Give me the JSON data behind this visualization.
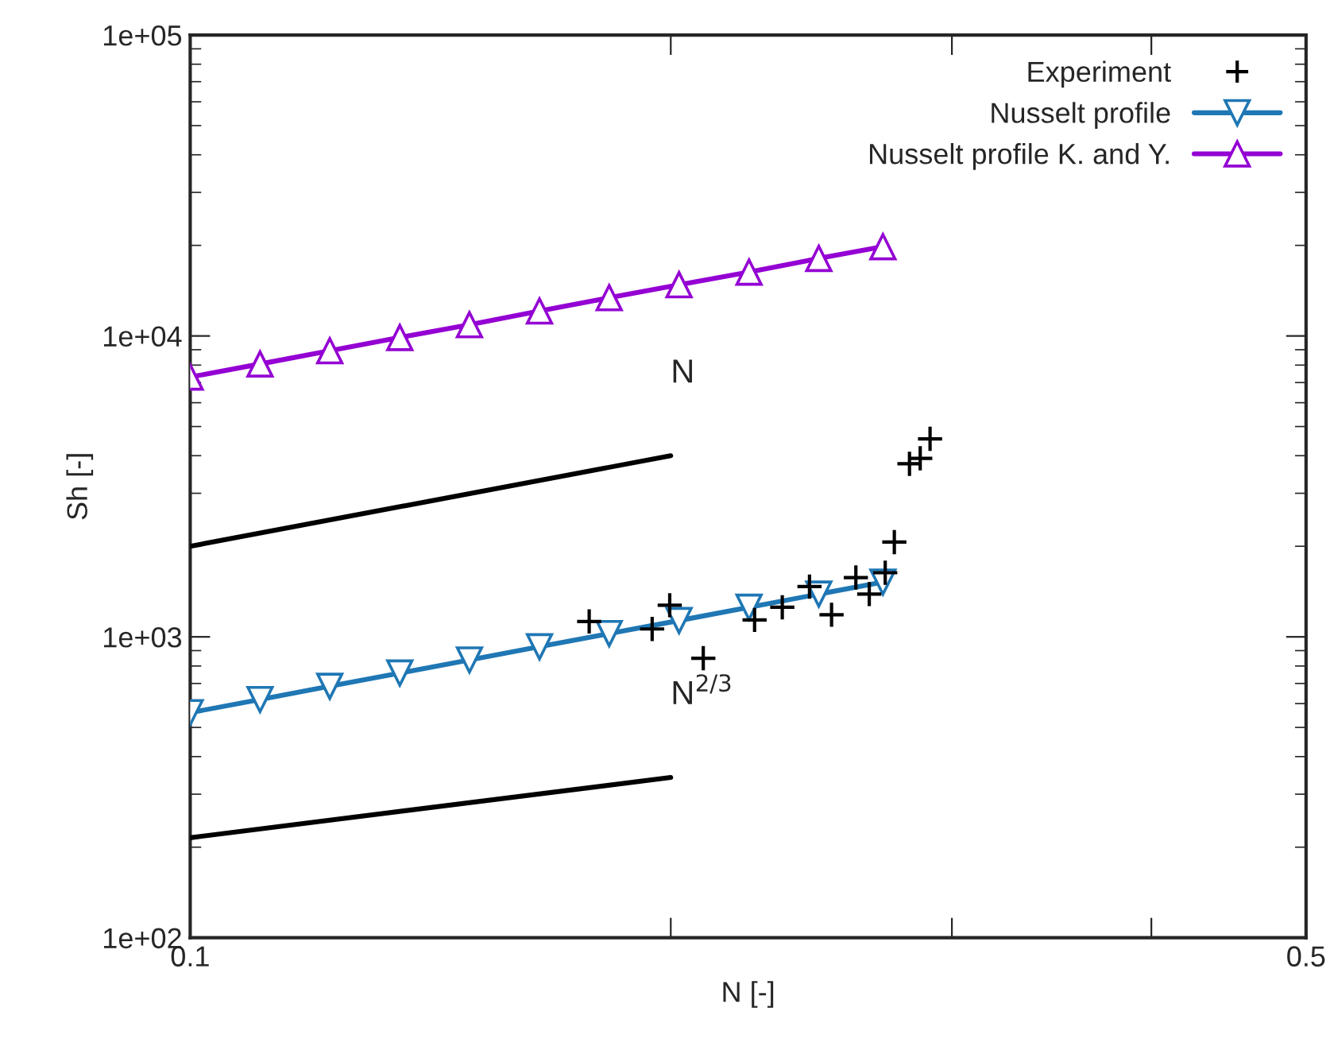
{
  "chart_data": {
    "type": "line",
    "xlabel": "N [-]",
    "ylabel": "Sh [-]",
    "log": "xy",
    "grid": false,
    "legend": "top right",
    "xlim": [
      0.1,
      0.5
    ],
    "xticks": [
      {
        "value": 0.1,
        "label": "0.1"
      },
      {
        "value": 0.2,
        "label": null
      },
      {
        "value": 0.3,
        "label": null
      },
      {
        "value": 0.4,
        "label": null
      },
      {
        "value": 0.5,
        "label": "0.5"
      }
    ],
    "ylim": [
      100,
      100000
    ],
    "yticks": [
      {
        "value": 100,
        "label": "1e+02"
      },
      {
        "value": 1000,
        "label": "1e+03"
      },
      {
        "value": 10000,
        "label": "1e+04"
      },
      {
        "value": 100000,
        "label": "1e+05"
      }
    ],
    "series": [
      {
        "name": "Experiment",
        "type": "scatter",
        "marker": "cross",
        "color": "#000000",
        "x": [
          0.1778,
          0.1997,
          0.1947,
          0.2096,
          0.2257,
          0.2349,
          0.2443,
          0.2522,
          0.2612,
          0.2663,
          0.2725,
          0.2761,
          0.2822,
          0.2866,
          0.2907
        ],
        "values": [
          1125,
          1274,
          1062,
          849,
          1138,
          1254,
          1469,
          1184,
          1574,
          1387,
          1633,
          2065,
          3760,
          3920,
          4550
        ]
      },
      {
        "name": "Nusselt profile",
        "marker": "triangle_down",
        "line_style": "solid",
        "color": "#1f77b4",
        "x": [
          0.1,
          0.1106,
          0.1223,
          0.1353,
          0.1496,
          0.1655,
          0.183,
          0.2024,
          0.2239,
          0.2476,
          0.2716
        ],
        "values": [
          560,
          619,
          685,
          758,
          838,
          927,
          1025,
          1133,
          1254,
          1387,
          1521
        ]
      },
      {
        "name": "Nusselt profile K. and Y.",
        "marker": "triangle",
        "line_style": "solid",
        "color": "#9400d3",
        "x": [
          0.1,
          0.1106,
          0.1223,
          0.1353,
          0.1496,
          0.1655,
          0.183,
          0.2024,
          0.2239,
          0.2476,
          0.2716
        ],
        "values": [
          7300,
          8070,
          8930,
          9880,
          10900,
          12100,
          13400,
          14800,
          16300,
          18100,
          19800
        ]
      },
      {
        "marker": "none",
        "line_style": "solid",
        "color": "#000000",
        "x": [
          0.1,
          0.2
        ],
        "values": [
          2000,
          4000
        ]
      },
      {
        "marker": "none",
        "line_style": "solid",
        "color": "#000000",
        "x": [
          0.1,
          0.2
        ],
        "values": [
          215,
          341
        ]
      }
    ],
    "annotations": [
      "N",
      "N$^{2/3}$"
    ]
  }
}
